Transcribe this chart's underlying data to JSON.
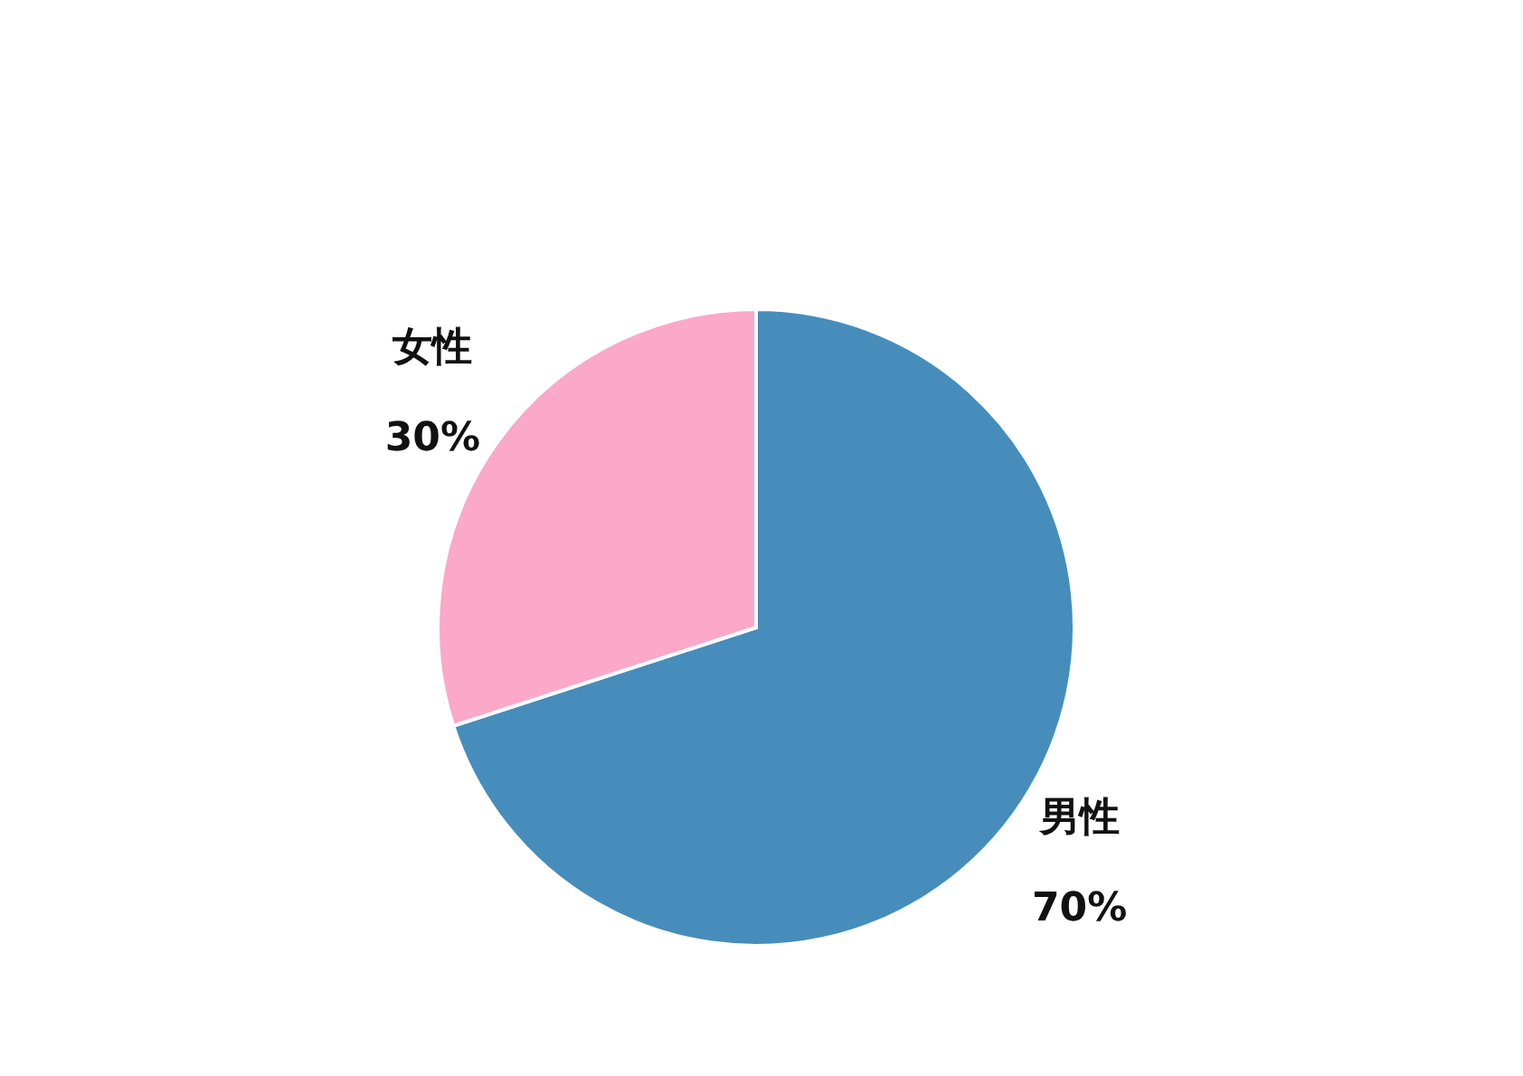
{
  "chart_data": {
    "type": "pie",
    "categories": [
      "男性",
      "女性"
    ],
    "values": [
      70,
      30
    ],
    "colors": [
      "#468dbb",
      "#fba8c9"
    ],
    "value_labels": [
      "70%",
      "30%"
    ]
  }
}
